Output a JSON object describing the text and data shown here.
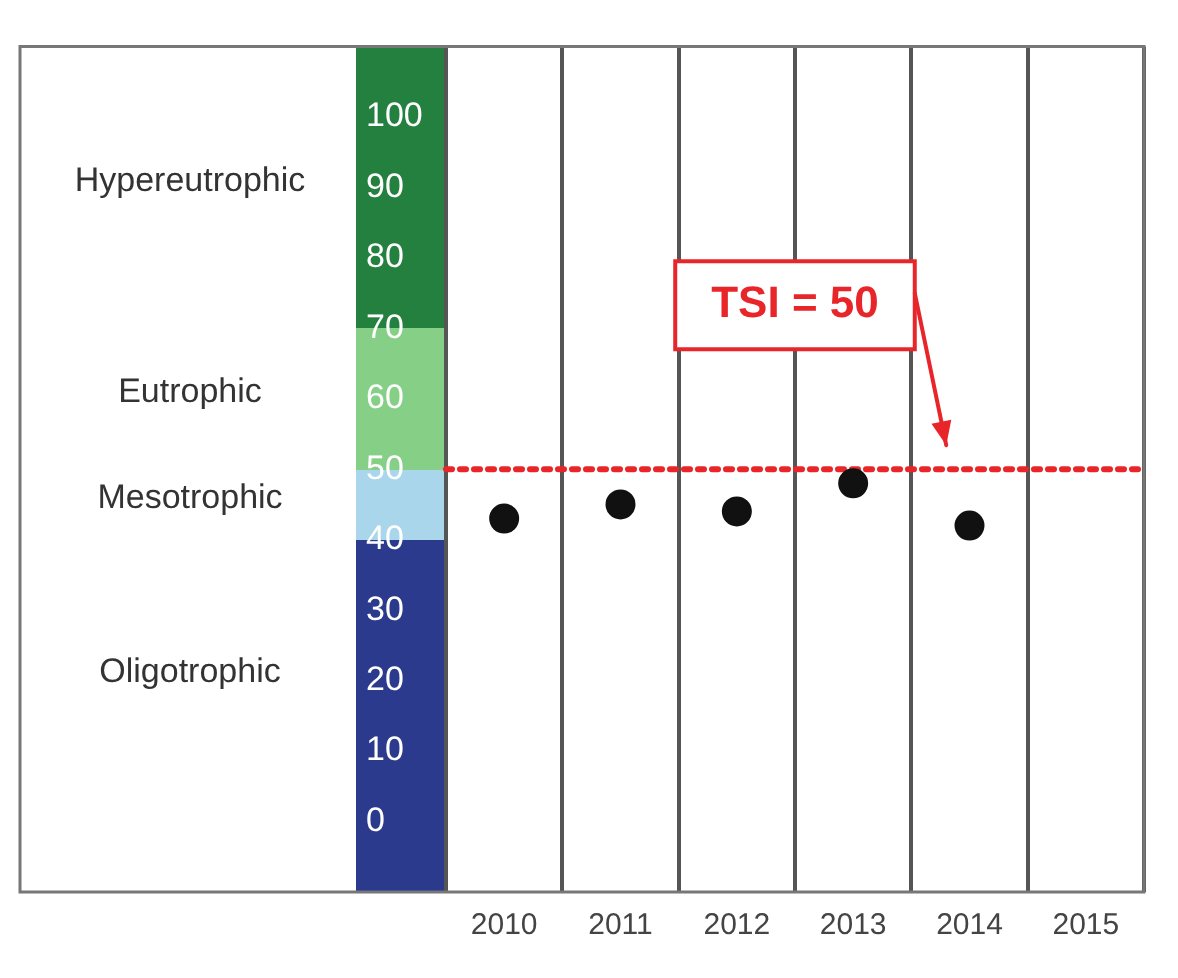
{
  "chart_data": {
    "type": "scatter",
    "categories": [
      "2010",
      "2011",
      "2012",
      "2013",
      "2014",
      "2015"
    ],
    "series": [
      {
        "color": "#111111",
        "values": [
          43,
          45,
          44,
          48,
          42,
          null
        ]
      }
    ],
    "ylim": [
      -10,
      110
    ],
    "yticks": [
      0,
      10,
      20,
      30,
      40,
      50,
      60,
      70,
      80,
      90,
      100
    ],
    "grid": "x",
    "marker": "circle",
    "legend": false,
    "annotations": [
      "Hypereutrophic",
      "Eutrophic",
      "Mesotrophic",
      "Oligotrophic"
    ],
    "ref_lines": [
      {
        "axis": "y",
        "value": 50,
        "label": "TSI = 50",
        "color": "#e8262a",
        "line_style": "dotted"
      }
    ]
  }
}
